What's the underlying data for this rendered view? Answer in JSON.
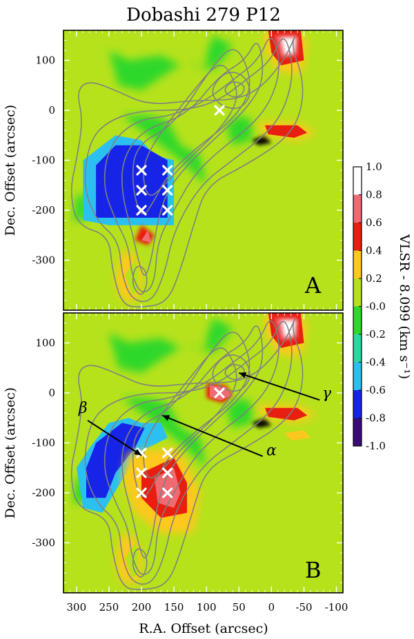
{
  "chart_data": {
    "type": "heatmap",
    "title": "Dobashi 279 P12",
    "xlabel": "R.A. Offset (arcsec)",
    "ylabel": "Dec. Offset (arcsec)",
    "xlim": [
      320,
      -110
    ],
    "ylim": [
      -400,
      160
    ],
    "x_ticks": [
      300,
      250,
      200,
      150,
      100,
      50,
      0,
      -50,
      -100
    ],
    "x_tick_labels": [
      "300",
      "250",
      "200",
      "150",
      "100",
      "50",
      "0",
      "-50",
      "-100"
    ],
    "y_ticks": [
      100,
      0,
      -100,
      -200,
      -300
    ],
    "y_tick_labels": [
      "100",
      "0",
      "-100",
      "-200",
      "-300"
    ],
    "colorbar": {
      "label": "VLSR - 8.099 (km s⁻¹)",
      "range": [
        -1.0,
        1.0
      ],
      "tick_labels": [
        "1.0",
        "0.8",
        "0.6",
        "0.4",
        "0.2",
        "-0.0",
        "-0.2",
        "-0.4",
        "-0.6",
        "-0.8",
        "-1.0"
      ],
      "levels": [
        {
          "min": 0.8,
          "max": 1.0,
          "color": "#ffffff"
        },
        {
          "min": 0.6,
          "max": 0.8,
          "color": "#f06a72"
        },
        {
          "min": 0.4,
          "max": 0.6,
          "color": "#e81e10"
        },
        {
          "min": 0.2,
          "max": 0.4,
          "color": "#ffc81c"
        },
        {
          "min": 0.0,
          "max": 0.2,
          "color": "#b6e21c"
        },
        {
          "min": -0.2,
          "max": 0.0,
          "color": "#2fd82a"
        },
        {
          "min": -0.4,
          "max": -0.2,
          "color": "#2ad8a0"
        },
        {
          "min": -0.6,
          "max": -0.4,
          "color": "#2cc0f0"
        },
        {
          "min": -0.8,
          "max": -0.6,
          "color": "#1624e8"
        },
        {
          "min": -1.0,
          "max": -0.8,
          "color": "#3c0a78"
        }
      ]
    },
    "panels": [
      {
        "label": "A",
        "pointings": [
          [
            80,
            0
          ],
          [
            200,
            -120
          ],
          [
            160,
            -120
          ],
          [
            200,
            -160
          ],
          [
            160,
            -160
          ],
          [
            200,
            -200
          ],
          [
            160,
            -200
          ]
        ]
      },
      {
        "label": "B",
        "pointings": [
          [
            80,
            0
          ],
          [
            200,
            -120
          ],
          [
            160,
            -120
          ],
          [
            200,
            -160
          ],
          [
            160,
            -160
          ],
          [
            200,
            -200
          ],
          [
            160,
            -200
          ]
        ],
        "annotations": [
          {
            "text": "β",
            "text_at": [
              290,
              -40
            ],
            "arrow_to": [
              200,
              -125
            ]
          },
          {
            "text": "α",
            "text_at": [
              0,
              -125
            ],
            "arrow_to": [
              168,
              -45
            ]
          },
          {
            "text": "γ",
            "text_at": [
              -85,
              -10
            ],
            "arrow_to": [
              50,
              40
            ]
          }
        ]
      }
    ],
    "colors": {
      "background_field": "#2fd82a",
      "contours": "#808080",
      "markers": "#ffffff"
    }
  }
}
